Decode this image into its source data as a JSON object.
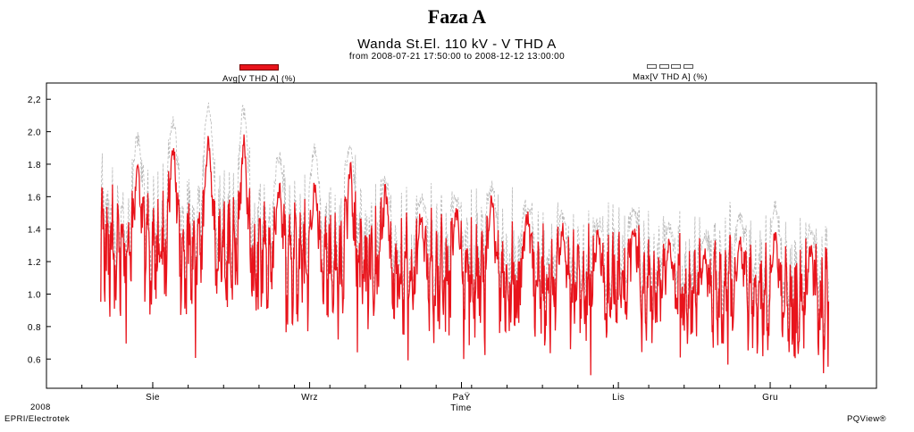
{
  "page": {
    "title": "Faza A"
  },
  "chart_data": {
    "type": "line",
    "title": "Wanda St.El. 110 kV - V THD A",
    "subtitle": "from 2008-07-21 17:50:00 to 2008-12-12 13:00:00",
    "xlabel": "Time",
    "ylabel": "",
    "x_range": [
      "2008-07-21",
      "2008-12-12"
    ],
    "xlim": [
      "2008-07-11",
      "2008-12-22"
    ],
    "ylim": [
      0.42,
      2.3
    ],
    "y_ticks": [
      0.6,
      0.8,
      1.0,
      1.2,
      1.4,
      1.6,
      1.8,
      2.0,
      2.2
    ],
    "y_tick_labels": [
      "0.6",
      "0.8",
      "1.0",
      "1.2",
      "1.4",
      "1.6",
      "1.8",
      "2.0",
      "2,2"
    ],
    "x_ticks": [
      {
        "date": "2008-08-01",
        "label": "Sie"
      },
      {
        "date": "2008-09-01",
        "label": "Wrz"
      },
      {
        "date": "2008-10-01",
        "label": "PaŸ"
      },
      {
        "date": "2008-11-01",
        "label": "Lis"
      },
      {
        "date": "2008-12-01",
        "label": "Gru"
      }
    ],
    "minor_x_tick_days": 7,
    "year_label": "2008",
    "grid": false,
    "legend_placement": "top",
    "series": [
      {
        "name": "Avg[V THD A] (%)",
        "color": "#e8141c",
        "style": "solid",
        "summary": {
          "min": 0.5,
          "max": 2.03
        },
        "weekly_peaks": [
          {
            "date": "2008-07-29",
            "value": 1.86
          },
          {
            "date": "2008-08-05",
            "value": 1.98
          },
          {
            "date": "2008-08-12",
            "value": 2.03
          },
          {
            "date": "2008-08-19",
            "value": 2.01
          },
          {
            "date": "2008-08-26",
            "value": 1.72
          },
          {
            "date": "2008-09-02",
            "value": 1.75
          },
          {
            "date": "2008-09-09",
            "value": 1.85
          },
          {
            "date": "2008-09-16",
            "value": 1.7
          },
          {
            "date": "2008-09-23",
            "value": 1.55
          },
          {
            "date": "2008-09-30",
            "value": 1.58
          },
          {
            "date": "2008-10-07",
            "value": 1.66
          },
          {
            "date": "2008-10-14",
            "value": 1.56
          },
          {
            "date": "2008-10-21",
            "value": 1.47
          },
          {
            "date": "2008-10-28",
            "value": 1.44
          },
          {
            "date": "2008-11-04",
            "value": 1.5
          },
          {
            "date": "2008-11-11",
            "value": 1.37
          },
          {
            "date": "2008-11-18",
            "value": 1.33
          },
          {
            "date": "2008-11-25",
            "value": 1.43
          },
          {
            "date": "2008-12-02",
            "value": 1.47
          },
          {
            "date": "2008-12-09",
            "value": 1.35
          }
        ]
      },
      {
        "name": "Max[V THD A] (%)",
        "color": "#b8b8b8",
        "style": "dashed",
        "summary": {
          "min": 0.55,
          "max": 2.21
        },
        "weekly_peaks": [
          {
            "date": "2008-07-29",
            "value": 2.0
          },
          {
            "date": "2008-08-05",
            "value": 2.1
          },
          {
            "date": "2008-08-12",
            "value": 2.21
          },
          {
            "date": "2008-08-19",
            "value": 2.18
          },
          {
            "date": "2008-08-26",
            "value": 1.88
          },
          {
            "date": "2008-09-02",
            "value": 1.93
          },
          {
            "date": "2008-09-09",
            "value": 1.96
          },
          {
            "date": "2008-09-16",
            "value": 1.73
          },
          {
            "date": "2008-09-23",
            "value": 1.63
          },
          {
            "date": "2008-09-30",
            "value": 1.62
          },
          {
            "date": "2008-10-07",
            "value": 1.7
          },
          {
            "date": "2008-10-14",
            "value": 1.58
          },
          {
            "date": "2008-10-21",
            "value": 1.52
          },
          {
            "date": "2008-10-28",
            "value": 1.48
          },
          {
            "date": "2008-11-04",
            "value": 1.53
          },
          {
            "date": "2008-11-11",
            "value": 1.45
          },
          {
            "date": "2008-11-18",
            "value": 1.4
          },
          {
            "date": "2008-11-25",
            "value": 1.53
          },
          {
            "date": "2008-12-02",
            "value": 1.58
          },
          {
            "date": "2008-12-09",
            "value": 1.43
          }
        ]
      }
    ]
  },
  "footer": {
    "source": "EPRI/Electrotek",
    "app": "PQView®"
  }
}
